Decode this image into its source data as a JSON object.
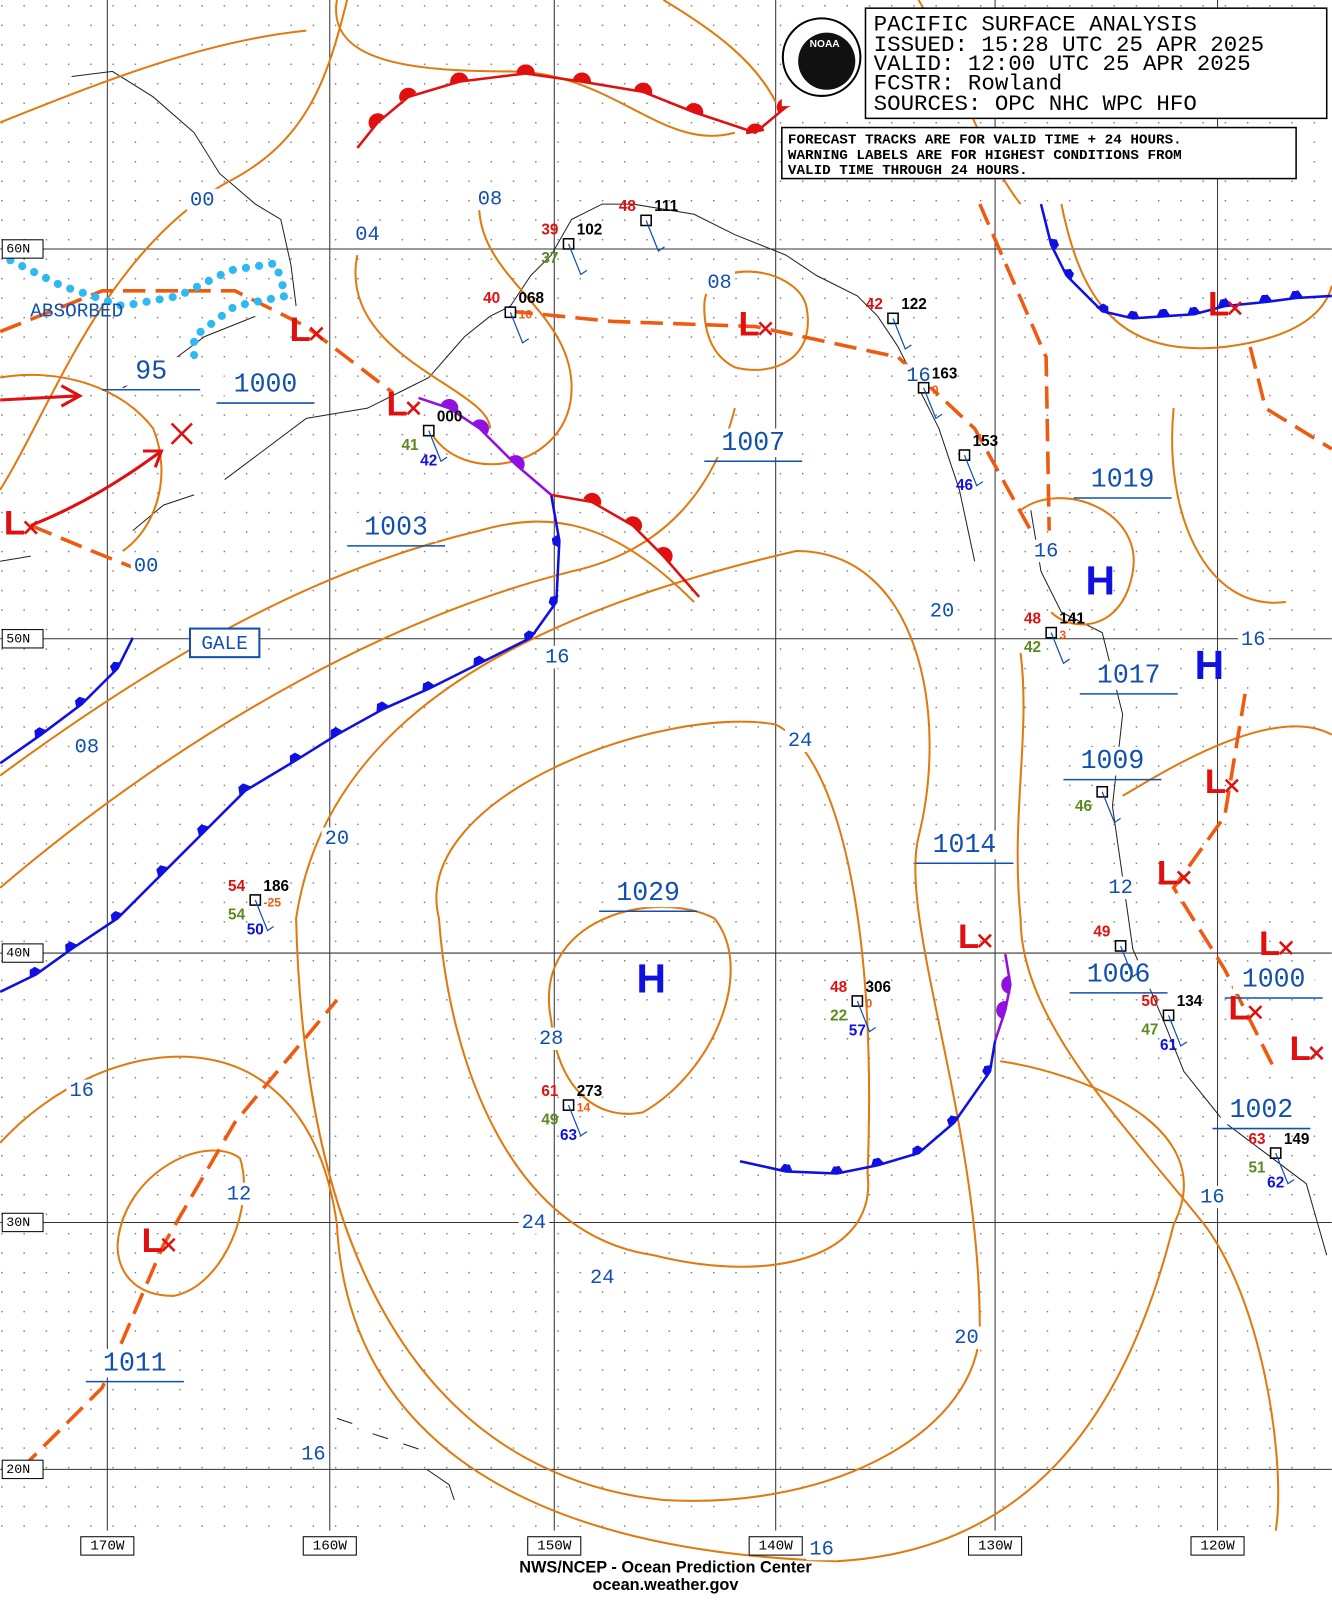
{
  "header": {
    "lines": [
      "PACIFIC SURFACE ANALYSIS",
      "ISSUED: 15:28 UTC 25 APR 2025",
      "VALID:  12:00 UTC 25 APR 2025",
      "FCSTR:  Rowland",
      "SOURCES: OPC NHC WPC HFO"
    ]
  },
  "note": {
    "lines": [
      "FORECAST TRACKS ARE FOR VALID TIME + 24 HOURS.",
      "WARNING LABELS ARE FOR HIGHEST CONDITIONS FROM",
      "VALID TIME THROUGH 24 HOURS."
    ]
  },
  "logo": "NOAA",
  "latitudes": [
    "60N",
    "50N",
    "40N",
    "30N",
    "20N"
  ],
  "longitudes": [
    "170W",
    "160W",
    "150W",
    "140W",
    "130W",
    "120W"
  ],
  "pressure_centers": [
    "1029",
    "1007",
    "1003",
    "1000",
    "95",
    "1019",
    "1017",
    "1009",
    "1014",
    "1006",
    "1000",
    "1002",
    "1011"
  ],
  "isobar_labels": [
    "00",
    "04",
    "08",
    "08",
    "00",
    "08",
    "16",
    "16",
    "16",
    "16",
    "20",
    "20",
    "24",
    "28",
    "24",
    "24",
    "20",
    "16",
    "12",
    "16",
    "16",
    "16",
    "12"
  ],
  "high_symbol": "H",
  "low_symbol": "L",
  "annotations": {
    "absorbed": "ABSORBED",
    "gale": "GALE"
  },
  "stations": [
    {
      "temp": "54",
      "pressure": "186",
      "dew": "54",
      "sst": "50",
      "tend": "-25"
    },
    {
      "temp": "61",
      "pressure": "273",
      "dew": "49",
      "sst": "63",
      "tend": "14"
    },
    {
      "temp": "48",
      "pressure": "306",
      "dew": "22",
      "sst": "57",
      "tend": "0"
    },
    {
      "temp": "50",
      "pressure": "134",
      "dew": "47",
      "sst": "61"
    },
    {
      "temp": "63",
      "pressure": "149",
      "dew": "51",
      "sst": "62"
    },
    {
      "temp": "49"
    },
    {
      "temp": "48",
      "pressure": "141",
      "dew": "42",
      "tend": "3"
    },
    {
      "dew": "46"
    },
    {
      "pressure": "153",
      "sst": "46"
    },
    {
      "pressure": "163",
      "tend": "0"
    },
    {
      "temp": "42",
      "pressure": "122"
    },
    {
      "temp": "40",
      "pressure": "068",
      "tend": "10"
    },
    {
      "temp": "39",
      "pressure": "102",
      "dew": "37"
    },
    {
      "temp": "48",
      "pressure": "111"
    },
    {
      "pressure": "000",
      "dew": "41",
      "sst": "42"
    }
  ],
  "footer": {
    "lines": [
      "NWS/NCEP - Ocean Prediction Center",
      "ocean.weather.gov"
    ]
  }
}
